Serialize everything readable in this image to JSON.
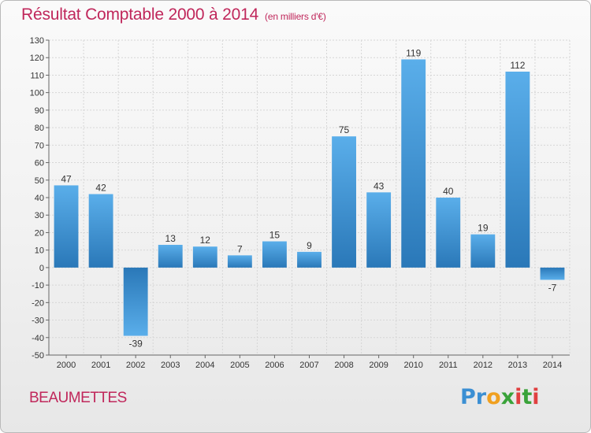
{
  "header": {
    "title": "Résultat Comptable 2000 à 2014",
    "subtitle": "(en milliers d'€)"
  },
  "footer": {
    "commune": "BEAUMETTES",
    "brand": {
      "letters": [
        "P",
        "r",
        "o",
        "x",
        "i",
        "t",
        "i"
      ],
      "colors": [
        "#3b8fd3",
        "#3b8fd3",
        "#f0a020",
        "#3aa33a",
        "#e04040",
        "#3aa33a",
        "#e04040"
      ]
    }
  },
  "chart_data": {
    "type": "bar",
    "categories": [
      "2000",
      "2001",
      "2002",
      "2003",
      "2004",
      "2005",
      "2006",
      "2007",
      "2008",
      "2009",
      "2010",
      "2011",
      "2012",
      "2013",
      "2014"
    ],
    "values": [
      47,
      42,
      -39,
      13,
      12,
      7,
      15,
      9,
      75,
      43,
      119,
      40,
      19,
      112,
      -7
    ],
    "value_labels": [
      "47",
      "42",
      "-39",
      "13",
      "12",
      "7",
      "15",
      "9",
      "75",
      "43",
      "119",
      "40",
      "19",
      "112",
      "-7"
    ],
    "yticks": [
      "130",
      "120",
      "110",
      "100",
      "90",
      "80",
      "70",
      "60",
      "50",
      "40",
      "30",
      "20",
      "10",
      "0",
      "-10",
      "-20",
      "-30",
      "-40",
      "-50"
    ],
    "ylim": [
      -50,
      130
    ],
    "grid": true,
    "bar_color": "#3d8fd0"
  }
}
